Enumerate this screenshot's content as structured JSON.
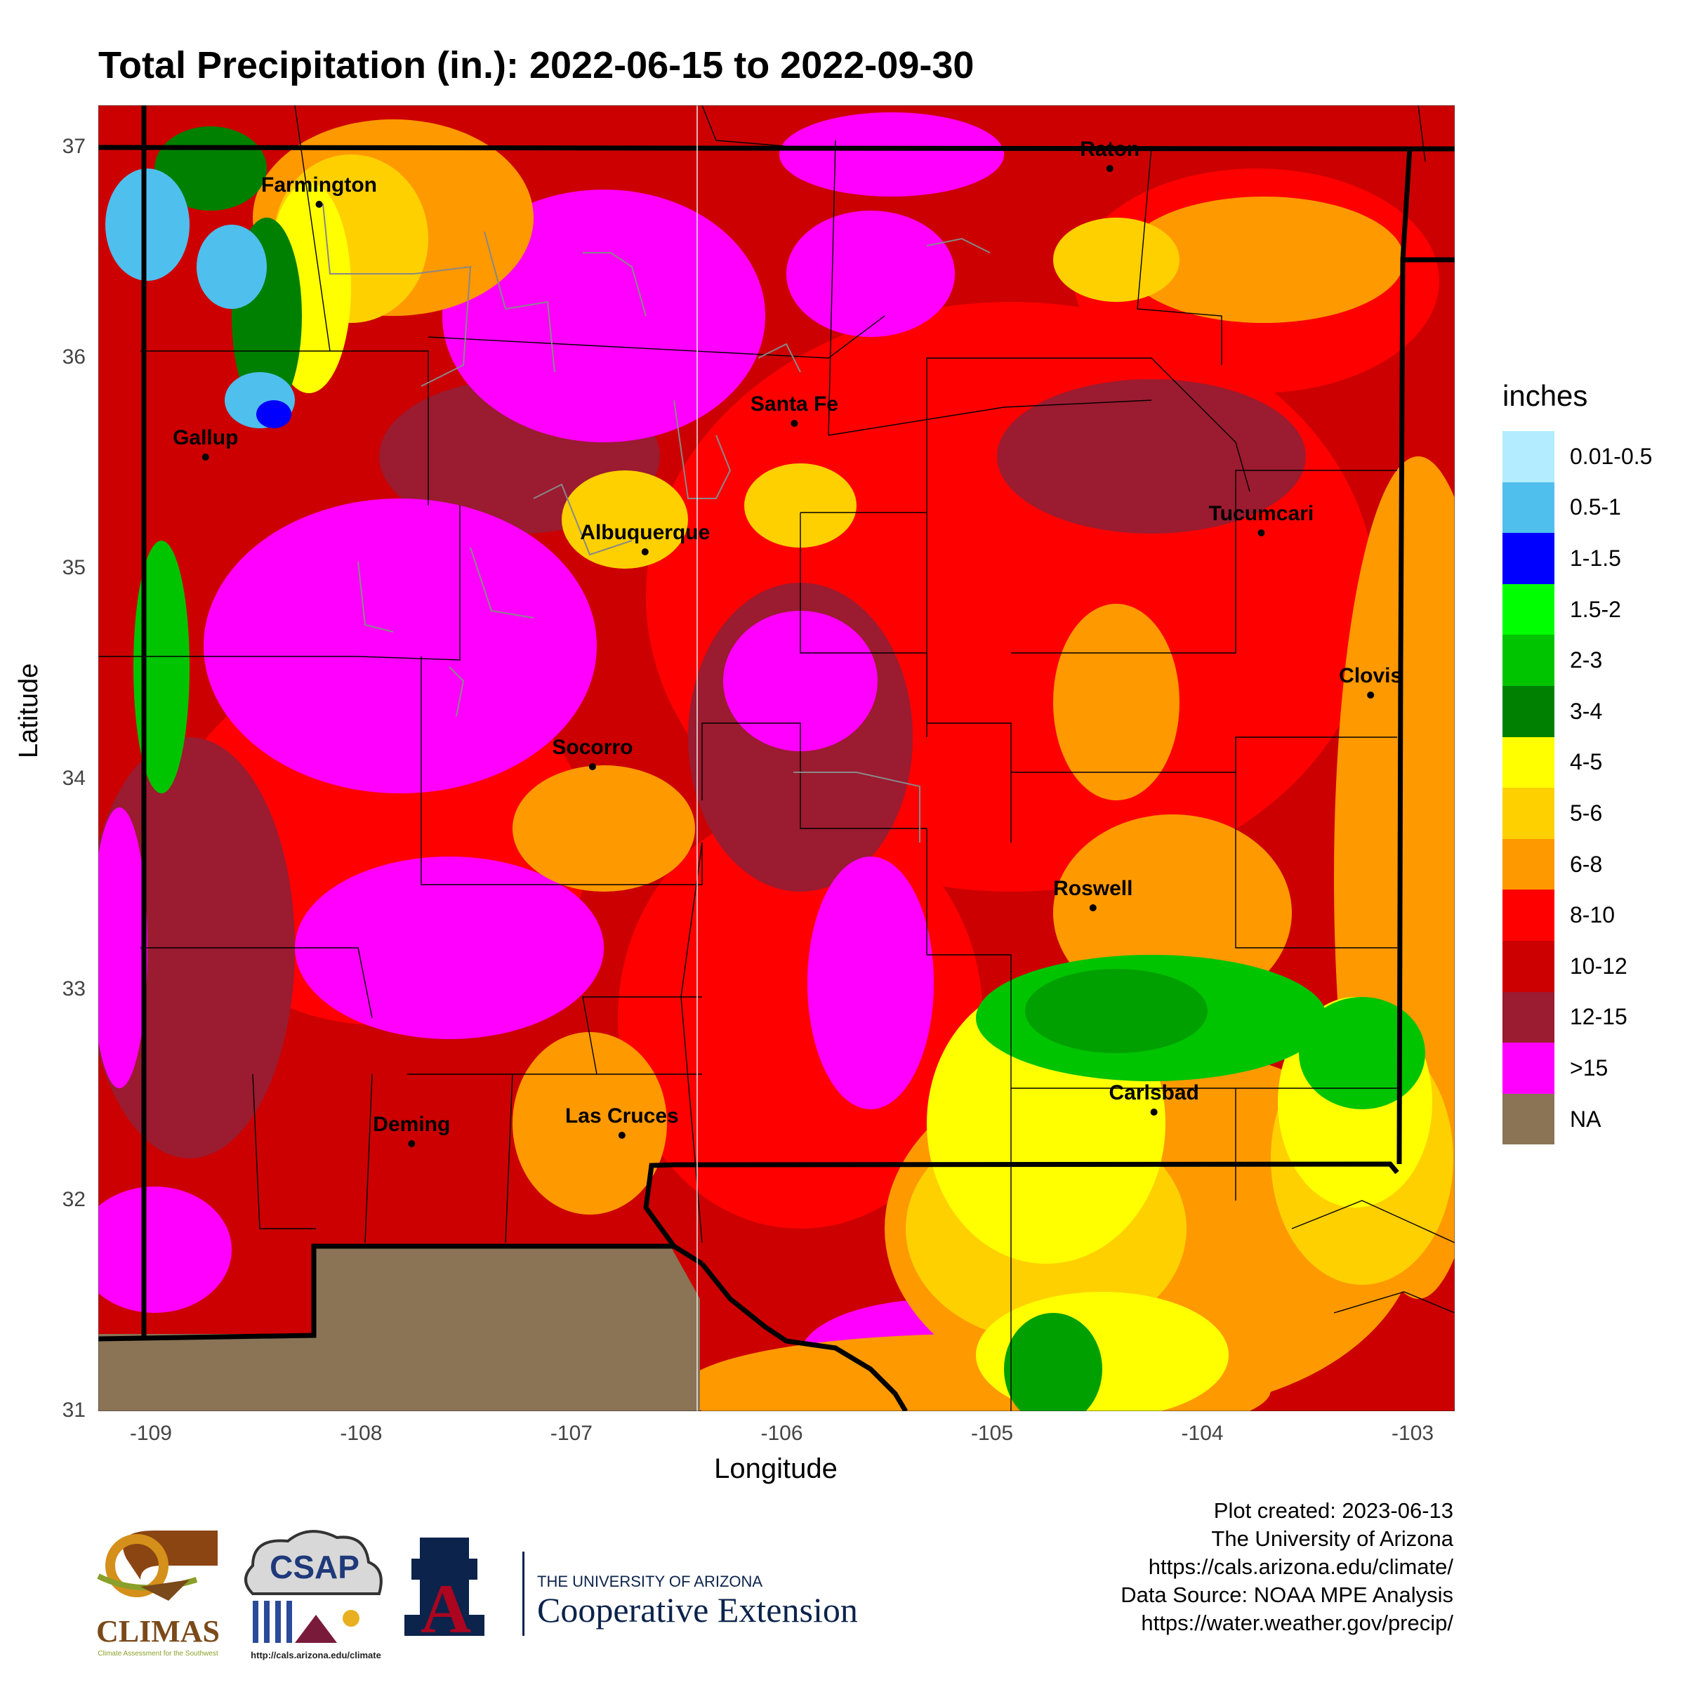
{
  "title": "Total Precipitation (in.): 2022-06-15 to 2022-09-30",
  "axes": {
    "xlabel": "Longitude",
    "ylabel": "Latitude",
    "xticks": [
      "-109",
      "-108",
      "-107",
      "-106",
      "-105",
      "-104",
      "-103"
    ],
    "yticks": [
      "37",
      "36",
      "35",
      "34",
      "33",
      "32",
      "31"
    ],
    "xlim": [
      -109.25,
      -102.8
    ],
    "ylim": [
      31.0,
      37.2
    ]
  },
  "legend": {
    "title": "inches",
    "items": [
      {
        "label": "0.01-0.5",
        "color": "#b3ecff"
      },
      {
        "label": "0.5-1",
        "color": "#4fbfee"
      },
      {
        "label": "1-1.5",
        "color": "#0000ff"
      },
      {
        "label": "1.5-2",
        "color": "#00ff00"
      },
      {
        "label": "2-3",
        "color": "#00c400"
      },
      {
        "label": "3-4",
        "color": "#008000"
      },
      {
        "label": "4-5",
        "color": "#ffff00"
      },
      {
        "label": "5-6",
        "color": "#ffd000"
      },
      {
        "label": "6-8",
        "color": "#ff9900"
      },
      {
        "label": "8-10",
        "color": "#ff0000"
      },
      {
        "label": "10-12",
        "color": "#cc0000"
      },
      {
        "label": "12-15",
        "color": "#9b1b30"
      },
      {
        "label": ">15",
        "color": "#ff00ff"
      },
      {
        "label": "NA",
        "color": "#8b7355"
      }
    ]
  },
  "cities": [
    {
      "name": "Farmington",
      "lon": -108.2,
      "lat": 36.73
    },
    {
      "name": "Raton",
      "lon": -104.44,
      "lat": 36.9
    },
    {
      "name": "Santa Fe",
      "lon": -105.94,
      "lat": 35.69
    },
    {
      "name": "Gallup",
      "lon": -108.74,
      "lat": 35.53
    },
    {
      "name": "Albuquerque",
      "lon": -106.65,
      "lat": 35.08
    },
    {
      "name": "Tucumcari",
      "lon": -103.72,
      "lat": 35.17
    },
    {
      "name": "Clovis",
      "lon": -103.2,
      "lat": 34.4
    },
    {
      "name": "Socorro",
      "lon": -106.9,
      "lat": 34.06
    },
    {
      "name": "Roswell",
      "lon": -104.52,
      "lat": 33.39
    },
    {
      "name": "Carlsbad",
      "lon": -104.23,
      "lat": 32.42
    },
    {
      "name": "Deming",
      "lon": -107.76,
      "lat": 32.27
    },
    {
      "name": "Las Cruces",
      "lon": -106.76,
      "lat": 32.31
    }
  ],
  "footer": {
    "lines": [
      "Plot created: 2023-06-13",
      "The University of Arizona",
      "https://cals.arizona.edu/climate/",
      "Data Source: NOAA MPE Analysis",
      "https://water.weather.gov/precip/"
    ]
  },
  "logos": {
    "climas": "CLIMAS",
    "climas_sub": "Climate Assessment for the Southwest",
    "csap": "CSAP",
    "csap_url": "http://cals.arizona.edu/climate",
    "ua_letter": "A",
    "ua_name": "THE UNIVERSITY OF ARIZONA",
    "ua_dept": "Cooperative Extension"
  },
  "colors": {
    "state_border": "#000000",
    "county_border": "#000000",
    "na_fill": "#8b7355"
  }
}
